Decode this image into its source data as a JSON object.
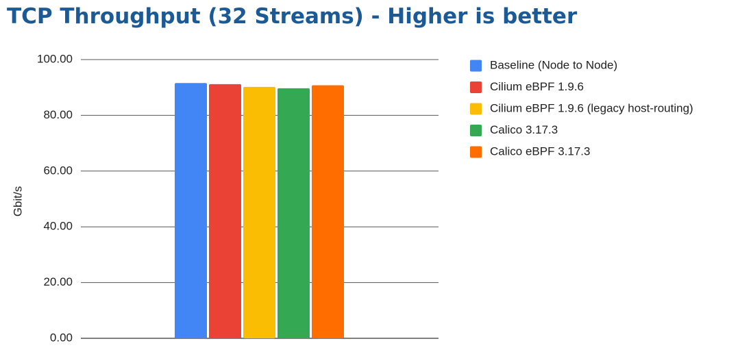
{
  "chart_data": {
    "type": "bar",
    "title": "TCP Throughput (32 Streams) - Higher is better",
    "ylabel": "Gbit/s",
    "xlabel": "",
    "ylim": [
      0,
      100
    ],
    "yticks": [
      "0.00",
      "20.00",
      "40.00",
      "60.00",
      "80.00",
      "100.00"
    ],
    "grid": true,
    "legend_position": "right",
    "categories": [
      ""
    ],
    "series": [
      {
        "name": "Baseline (Node to Node)",
        "values": [
          91.6
        ],
        "color": "#4285f4"
      },
      {
        "name": "Cilium eBPF 1.9.6",
        "values": [
          91.2
        ],
        "color": "#ea4335"
      },
      {
        "name": "Cilium eBPF 1.9.6 (legacy host-routing)",
        "values": [
          90.2
        ],
        "color": "#fbbc04"
      },
      {
        "name": "Calico 3.17.3",
        "values": [
          89.7
        ],
        "color": "#34a853"
      },
      {
        "name": "Calico eBPF 3.17.3",
        "values": [
          90.8
        ],
        "color": "#ff6d01"
      }
    ]
  }
}
